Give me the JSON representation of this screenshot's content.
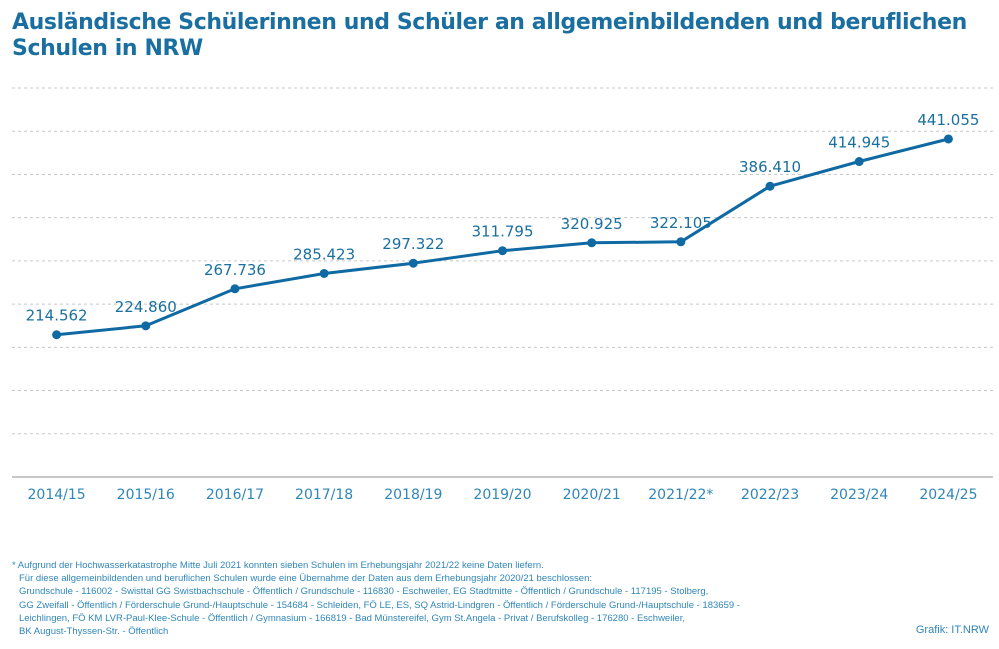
{
  "title": "Ausländische Schülerinnen und Schüler an allgemeinbildenden und beruflichen Schulen in NRW",
  "colors": {
    "line": "#0f6aa3",
    "text": "#1a6fa0",
    "grid": "#c8c8c8",
    "axis": "#c8c8c8",
    "footnote": "#2f86b8"
  },
  "chart_data": {
    "type": "line",
    "title": "Ausländische Schülerinnen und Schüler an allgemeinbildenden und beruflichen Schulen in NRW",
    "xlabel": "",
    "ylabel": "",
    "categories": [
      "2014/15",
      "2015/16",
      "2016/17",
      "2017/18",
      "2018/19",
      "2019/20",
      "2020/21",
      "2021/22*",
      "2022/23",
      "2023/24",
      "2024/25"
    ],
    "series": [
      {
        "name": "Ausländische Schülerinnen und Schüler",
        "values": [
          214562,
          224860,
          267736,
          285423,
          297322,
          311795,
          320925,
          322105,
          386410,
          414945,
          441055
        ]
      }
    ],
    "data_labels": [
      "214.562",
      "224.860",
      "267.736",
      "285.423",
      "297.322",
      "311.795",
      "320.925",
      "322.105",
      "386.410",
      "414.945",
      "441.055"
    ],
    "ylim": [
      50000,
      500000
    ],
    "y_grid_step": 50000,
    "grid": true,
    "y_tick_labels_shown": false,
    "legend": "none"
  },
  "footnote": [
    "* Aufgrund der Hochwasserkatastrophe Mitte Juli 2021 konnten sieben Schulen im Erhebungsjahr 2021/22 keine Daten liefern.",
    "Für diese allgemeinbildenden und beruflichen Schulen wurde eine Übernahme der Daten aus dem Erhebungsjahr 2020/21 beschlossen:",
    "Grundschule - 116002 - Swisttal GG Swistbachschule - Öffentlich / Grundschule - 116830 - Eschweiler, EG Stadtmitte - Öffentlich / Grundschule - 117195 - Stolberg,",
    "GG Zweifall - Öffentlich / Förderschule Grund-/Hauptschule - 154684 - Schleiden, FÖ LE, ES, SQ Astrid-Lindgren -  Öffentlich / Förderschule Grund-/Hauptschule - 183659 -",
    "Leichlingen, FÖ KM LVR-Paul-Klee-Schule - Öffentlich / Gymnasium - 166819 - Bad Münstereifel, Gym St.Angela - Privat / Berufskolleg - 176280 - Eschweiler,",
    "BK August-Thyssen-Str. - Öffentlich"
  ],
  "credit": "Grafik: IT.NRW"
}
